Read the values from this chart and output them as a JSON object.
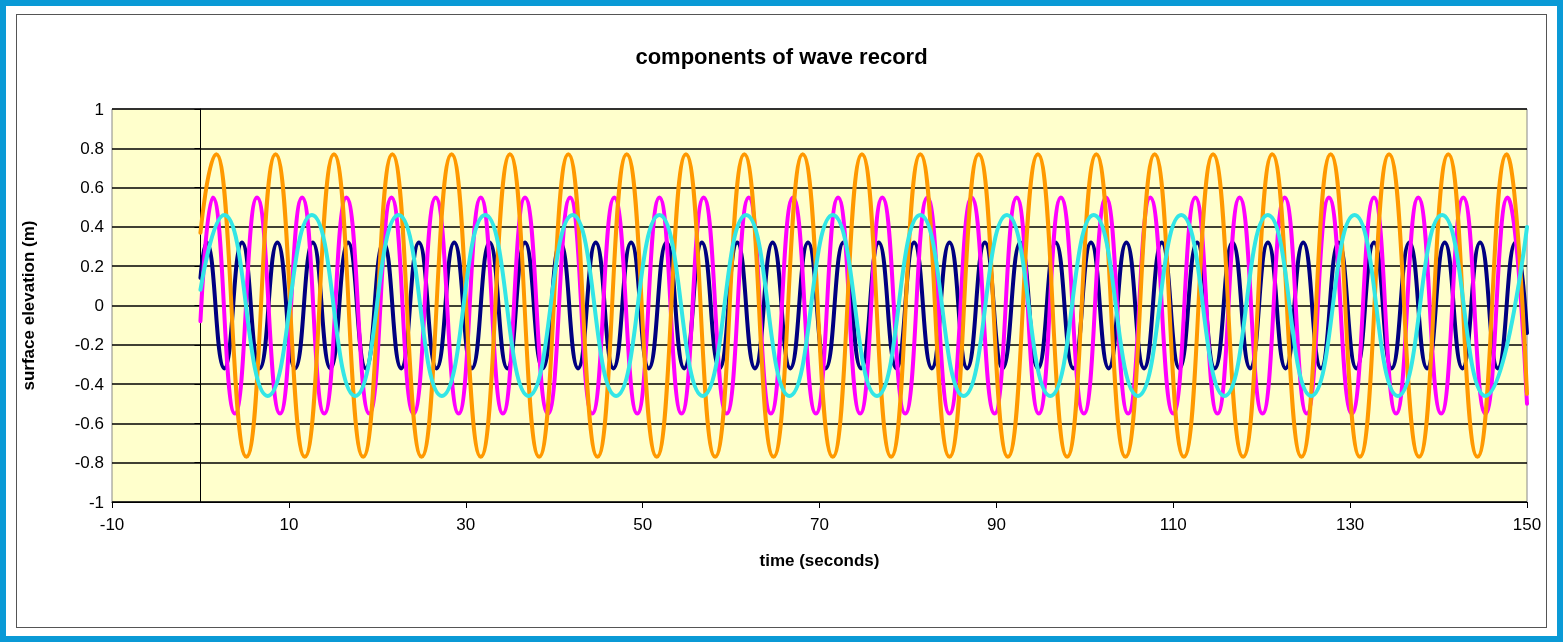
{
  "chart_data": {
    "type": "line",
    "title": "components of wave record",
    "xlabel": "time (seconds)",
    "ylabel": "surface elevation (m)",
    "xlim": [
      -10,
      150
    ],
    "xticks": [
      -10,
      10,
      30,
      50,
      70,
      90,
      110,
      130,
      150
    ],
    "ylim": [
      -1,
      1
    ],
    "yticks": [
      -1,
      -0.8,
      -0.6,
      -0.4,
      -0.2,
      0,
      0.2,
      0.4,
      0.6,
      0.8,
      1
    ],
    "grid": "y",
    "marker": "none",
    "line_style": "solid",
    "series": [
      {
        "color": "#000080",
        "x": [
          0,
          0.7,
          2.7,
          4.7,
          6.7,
          8.7,
          10.7,
          12.7,
          14.7,
          16.7,
          18.7,
          20.7,
          22.7,
          24.7,
          26.7,
          28.7,
          30.7,
          32.7,
          34.7,
          36.7,
          38.7,
          40.7,
          42.7,
          44.7,
          46.7,
          48.7,
          50.7,
          52.7,
          54.7,
          56.7,
          58.7,
          60.7,
          62.7,
          64.7,
          66.7,
          68.7,
          70.7,
          72.7,
          74.7,
          76.7,
          78.7,
          80.7,
          82.7,
          84.7,
          86.7,
          88.7,
          90.7,
          92.7,
          94.7,
          96.7,
          98.7,
          100.7,
          102.7,
          104.7,
          106.7,
          108.7,
          110.7,
          112.7,
          114.7,
          116.7,
          118.7,
          120.7,
          122.7,
          124.7,
          126.7,
          128.7,
          130.7,
          132.7,
          134.7,
          136.7,
          138.7,
          140.7,
          142.7,
          144.7,
          146.7,
          148.7,
          150
        ],
        "values": [
          0.14,
          0.32,
          -0.32,
          0.32,
          -0.32,
          0.32,
          -0.32,
          0.32,
          -0.32,
          0.32,
          -0.32,
          0.32,
          -0.32,
          0.32,
          -0.32,
          0.32,
          -0.32,
          0.32,
          -0.32,
          0.32,
          -0.32,
          0.32,
          -0.32,
          0.32,
          -0.32,
          0.32,
          -0.32,
          0.32,
          -0.32,
          0.32,
          -0.32,
          0.32,
          -0.32,
          0.32,
          -0.32,
          0.32,
          -0.32,
          0.32,
          -0.32,
          0.32,
          -0.32,
          0.32,
          -0.32,
          0.32,
          -0.32,
          0.32,
          -0.32,
          0.32,
          -0.32,
          0.32,
          -0.32,
          0.32,
          -0.32,
          0.32,
          -0.32,
          0.32,
          -0.32,
          0.32,
          -0.32,
          0.32,
          -0.32,
          0.32,
          -0.32,
          0.32,
          -0.32,
          0.32,
          -0.32,
          0.32,
          -0.32,
          0.32,
          -0.32,
          0.32,
          -0.32,
          0.32,
          -0.32,
          0.32,
          -0.14
        ]
      },
      {
        "color": "#ff00ff",
        "x": [
          0,
          1.4,
          3.9,
          6.4,
          9.0,
          11.5,
          14.0,
          16.5,
          19.1,
          21.6,
          24.1,
          26.6,
          29.2,
          31.7,
          34.2,
          36.7,
          39.3,
          41.8,
          44.3,
          46.8,
          49.4,
          51.9,
          54.4,
          56.9,
          59.5,
          62.0,
          64.5,
          67.0,
          69.6,
          72.1,
          74.6,
          77.1,
          79.7,
          82.2,
          84.7,
          87.2,
          89.8,
          92.3,
          94.8,
          97.3,
          99.9,
          102.4,
          104.9,
          107.4,
          110.0,
          112.5,
          115.0,
          117.5,
          120.1,
          122.6,
          125.1,
          127.6,
          130.2,
          132.7,
          135.2,
          137.7,
          140.3,
          142.8,
          145.3,
          147.8,
          150
        ],
        "values": [
          -0.08,
          0.55,
          -0.55,
          0.55,
          -0.55,
          0.55,
          -0.55,
          0.55,
          -0.55,
          0.55,
          -0.55,
          0.55,
          -0.55,
          0.55,
          -0.55,
          0.55,
          -0.55,
          0.55,
          -0.55,
          0.55,
          -0.55,
          0.55,
          -0.55,
          0.55,
          -0.55,
          0.55,
          -0.55,
          0.55,
          -0.55,
          0.55,
          -0.55,
          0.55,
          -0.55,
          0.55,
          -0.55,
          0.55,
          -0.55,
          0.55,
          -0.55,
          0.55,
          -0.55,
          0.55,
          -0.55,
          0.55,
          -0.55,
          0.55,
          -0.55,
          0.55,
          -0.55,
          0.55,
          -0.55,
          0.55,
          -0.55,
          0.55,
          -0.55,
          0.55,
          -0.55,
          0.55,
          -0.55,
          0.55,
          -0.5
        ]
      },
      {
        "color": "#ff9900",
        "x": [
          0,
          1.8,
          5.2,
          8.5,
          11.8,
          15.1,
          18.4,
          21.7,
          25.0,
          28.4,
          31.7,
          35.0,
          38.3,
          41.6,
          44.9,
          48.2,
          51.6,
          54.9,
          58.2,
          61.5,
          64.8,
          68.1,
          71.5,
          74.8,
          78.1,
          81.4,
          84.7,
          88.0,
          91.3,
          94.7,
          98.0,
          101.3,
          104.6,
          107.9,
          111.2,
          114.5,
          117.9,
          121.2,
          124.5,
          127.8,
          131.1,
          134.4,
          137.8,
          141.1,
          144.4,
          147.7,
          150
        ],
        "values": [
          0.37,
          0.77,
          -0.77,
          0.77,
          -0.77,
          0.77,
          -0.77,
          0.77,
          -0.77,
          0.77,
          -0.77,
          0.77,
          -0.77,
          0.77,
          -0.77,
          0.77,
          -0.77,
          0.77,
          -0.77,
          0.77,
          -0.77,
          0.77,
          -0.77,
          0.77,
          -0.77,
          0.77,
          -0.77,
          0.77,
          -0.77,
          0.77,
          -0.77,
          0.77,
          -0.77,
          0.77,
          -0.77,
          0.77,
          -0.77,
          0.77,
          -0.77,
          0.77,
          -0.77,
          0.77,
          -0.77,
          0.77,
          -0.77,
          0.77,
          -0.45
        ]
      },
      {
        "color": "#33e6e6",
        "x": [
          0,
          2.7,
          7.6,
          12.6,
          17.5,
          22.4,
          27.3,
          32.2,
          37.1,
          42.1,
          47.0,
          51.9,
          56.8,
          61.7,
          66.6,
          71.5,
          76.5,
          81.4,
          86.3,
          91.2,
          96.1,
          101.0,
          106.0,
          110.9,
          115.8,
          120.7,
          125.6,
          130.5,
          135.4,
          140.4,
          145.3,
          150
        ],
        "values": [
          0.08,
          0.46,
          -0.46,
          0.46,
          -0.46,
          0.46,
          -0.46,
          0.46,
          -0.46,
          0.46,
          -0.46,
          0.46,
          -0.46,
          0.46,
          -0.46,
          0.46,
          -0.46,
          0.46,
          -0.46,
          0.46,
          -0.46,
          0.46,
          -0.46,
          0.46,
          -0.46,
          0.46,
          -0.46,
          0.46,
          -0.46,
          0.46,
          -0.46,
          0.4
        ]
      }
    ]
  }
}
